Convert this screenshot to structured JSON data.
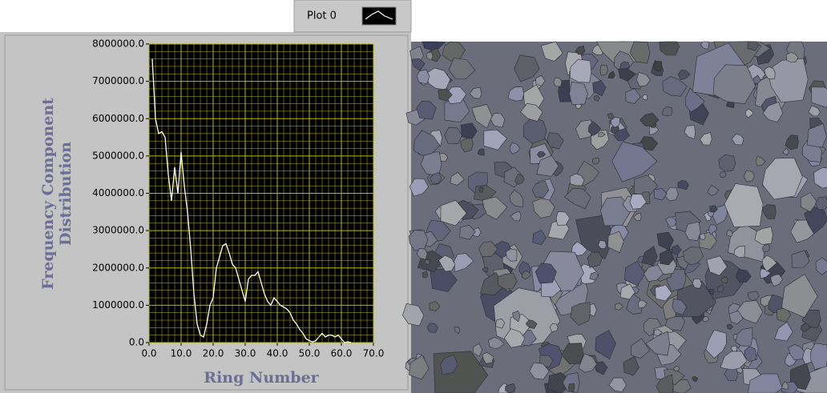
{
  "chart_data": {
    "type": "line",
    "xlabel": "Ring Number",
    "ylabel": [
      "Frequency Component",
      "Distribution"
    ],
    "x": [
      1,
      2,
      3,
      4,
      5,
      6,
      7,
      8,
      9,
      10,
      11,
      12,
      13,
      14,
      15,
      16,
      17,
      18,
      19,
      20,
      21,
      22,
      23,
      24,
      25,
      26,
      27,
      28,
      29,
      30,
      31,
      32,
      33,
      34,
      35,
      36,
      37,
      38,
      39,
      40,
      41,
      42,
      43,
      44,
      45,
      46,
      47,
      48,
      49,
      50,
      51,
      52,
      53,
      54,
      55,
      56,
      57,
      58,
      59,
      60,
      61,
      62,
      63
    ],
    "series": [
      {
        "name": "Plot 0",
        "color": "#ffffff",
        "values": [
          7600000,
          6000000,
          5600000,
          5650000,
          5500000,
          4500000,
          3800000,
          4700000,
          4000000,
          5100000,
          4200000,
          3500000,
          2500000,
          1300000,
          500000,
          200000,
          150000,
          500000,
          1000000,
          1200000,
          2000000,
          2300000,
          2600000,
          2650000,
          2400000,
          2100000,
          2000000,
          1700000,
          1400000,
          1100000,
          1700000,
          1800000,
          1800000,
          1900000,
          1600000,
          1300000,
          1100000,
          1000000,
          1200000,
          1100000,
          1000000,
          950000,
          900000,
          800000,
          600000,
          500000,
          350000,
          250000,
          100000,
          50000,
          20000,
          50000,
          150000,
          250000,
          150000,
          200000,
          200000,
          150000,
          200000,
          100000,
          0,
          20000,
          0
        ]
      }
    ],
    "xlim": [
      0,
      70
    ],
    "xticks": [
      {
        "value": 0,
        "label": "0.0"
      },
      {
        "value": 10,
        "label": "10.0"
      },
      {
        "value": 20,
        "label": "20.0"
      },
      {
        "value": 30,
        "label": "30.0"
      },
      {
        "value": 40,
        "label": "40.0"
      },
      {
        "value": 50,
        "label": "50.0"
      },
      {
        "value": 60,
        "label": "60.0"
      },
      {
        "value": 70,
        "label": "70.0"
      }
    ],
    "ylim": [
      0,
      8000000
    ],
    "yticks": [
      {
        "value": 0,
        "label": "0.0"
      },
      {
        "value": 1000000,
        "label": "1000000.0"
      },
      {
        "value": 2000000,
        "label": "2000000.0"
      },
      {
        "value": 3000000,
        "label": "3000000.0"
      },
      {
        "value": 4000000,
        "label": "4000000.0"
      },
      {
        "value": 5000000,
        "label": "5000000.0"
      },
      {
        "value": 6000000,
        "label": "6000000.0"
      },
      {
        "value": 7000000,
        "label": "7000000.0"
      },
      {
        "value": 8000000,
        "label": "8000000.0"
      }
    ],
    "grid": true,
    "grid_color": "#b8b800",
    "plot_background": "#000000"
  }
}
